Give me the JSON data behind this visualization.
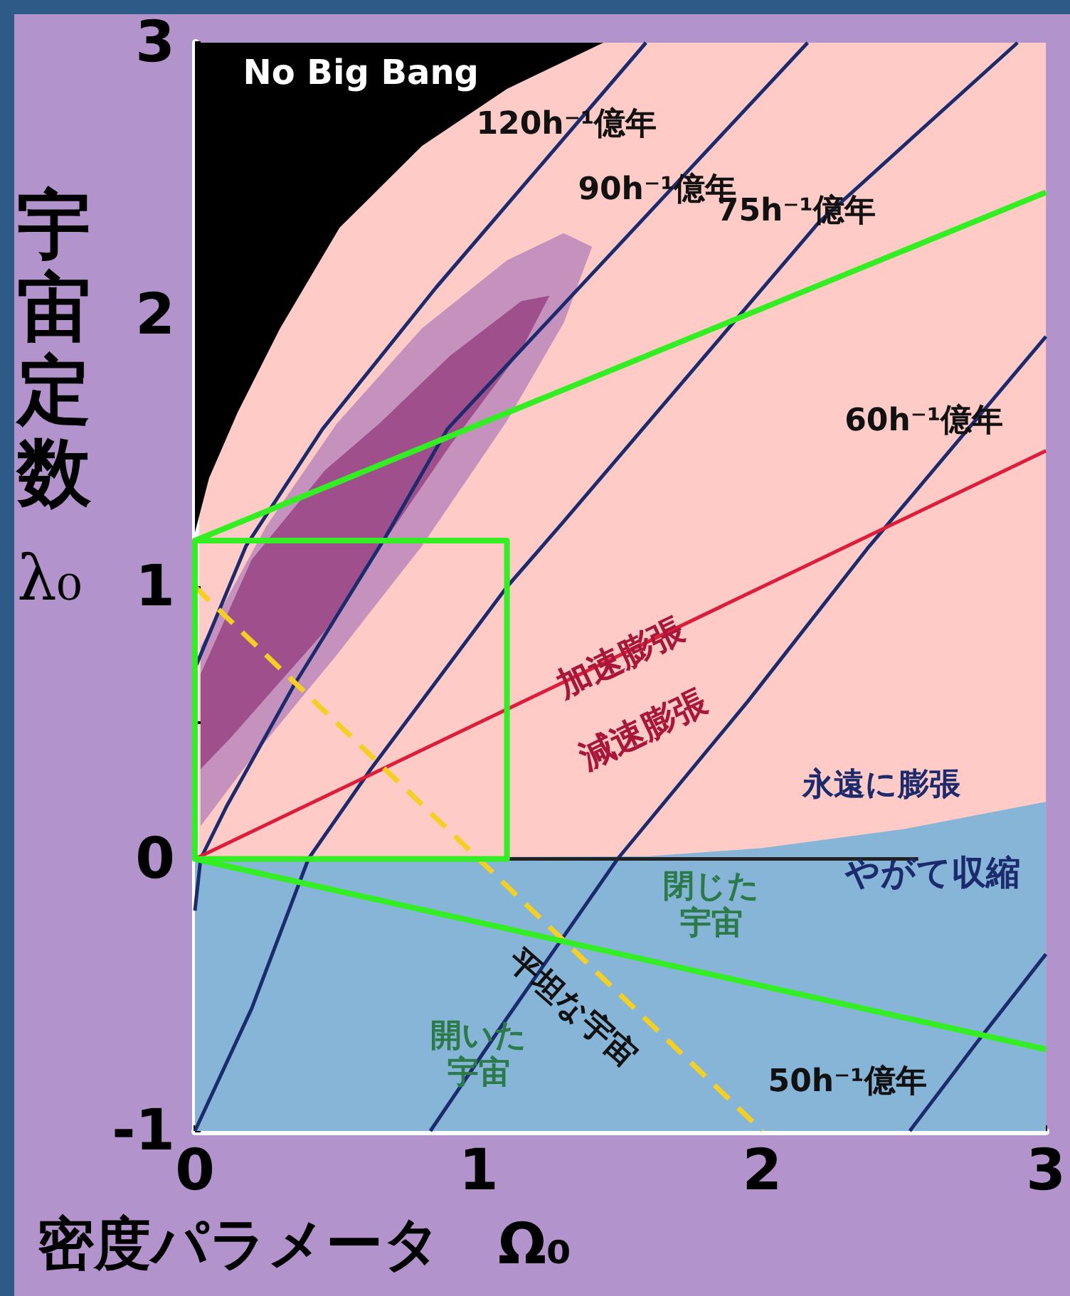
{
  "chart_data": {
    "type": "line",
    "xlabel": "密度パラメータ　Ω₀",
    "ylabel": "宇宙定数 λ₀",
    "xlim": [
      0,
      3
    ],
    "ylim": [
      -1,
      3
    ],
    "xticks": [
      0,
      1,
      2,
      3
    ],
    "yticks": [
      -1,
      {
        "value": -0.5,
        "label": null
      },
      0,
      {
        "value": 0.5,
        "label": null
      },
      1,
      {
        "value": 1.5,
        "label": null
      },
      2,
      {
        "value": 2.5,
        "label": null
      },
      3
    ],
    "grid": false,
    "marker": "none",
    "series": [
      {
        "type": "area",
        "color": "#000000",
        "x": [
          0,
          0.05,
          0.15,
          0.3,
          0.51,
          0.8,
          1.1,
          1.44,
          0
        ],
        "values": [
          1.2,
          1.4,
          1.64,
          1.95,
          2.32,
          2.62,
          2.83,
          3,
          3
        ]
      },
      {
        "type": "area",
        "color": "#87b5d8",
        "x": [
          0,
          1.6,
          2,
          2.5,
          3,
          3,
          0
        ],
        "values": [
          0,
          0.01,
          0.04,
          0.11,
          0.21,
          -1,
          -1
        ]
      },
      {
        "type": "area",
        "color": "#c592be",
        "x": [
          0.02,
          0.25,
          0.5,
          0.8,
          1.1,
          1.3,
          1.4,
          1.3,
          1.1,
          0.8,
          0.5,
          0.2,
          0.02
        ],
        "values": [
          0.78,
          1.22,
          1.6,
          1.95,
          2.2,
          2.3,
          2.25,
          1.97,
          1.61,
          1.15,
          0.75,
          0.37,
          0.12
        ]
      },
      {
        "type": "area",
        "color": "#9e4f8c",
        "x": [
          0.02,
          0.2,
          0.46,
          0.65,
          0.9,
          1.15,
          1.25,
          1.15,
          0.9,
          0.65,
          0.46,
          0.13,
          0.02
        ],
        "values": [
          0.68,
          1.1,
          1.43,
          1.6,
          1.85,
          2.05,
          2.07,
          1.87,
          1.52,
          1.14,
          0.84,
          0.45,
          0.33
        ]
      },
      {
        "type": "line",
        "color": "#1c2a6e",
        "x": [
          0,
          0.18,
          0.45,
          0.85,
          1.59
        ],
        "values": [
          0.7,
          1.15,
          1.58,
          2.1,
          3
        ]
      },
      {
        "type": "line",
        "color": "#1c2a6e",
        "x": [
          0,
          0.02,
          0.11,
          0.35,
          0.67,
          0.89,
          2.16
        ],
        "values": [
          -0.19,
          0,
          0.19,
          0.64,
          1.18,
          1.58,
          3
        ]
      },
      {
        "type": "line",
        "color": "#1c2a6e",
        "x": [
          0,
          0.2,
          0.4,
          0.62,
          1.1,
          1.3,
          2.2,
          2.9
        ],
        "values": [
          -1,
          -0.55,
          0,
          0.33,
          1.0,
          1.24,
          2.34,
          3
        ]
      },
      {
        "type": "line",
        "color": "#1c2a6e",
        "x": [
          0.83,
          1.09,
          1.49,
          1.95,
          2.37,
          3
        ],
        "values": [
          -1,
          -0.6,
          0,
          0.58,
          1.14,
          1.92
        ]
      },
      {
        "type": "line",
        "color": "#1c2a6e",
        "x": [
          2.52,
          2.76,
          3
        ],
        "values": [
          -1,
          -0.67,
          -0.35
        ]
      },
      {
        "type": "line",
        "color": "#222222",
        "x": [
          0,
          2.55
        ],
        "values": [
          0,
          0
        ]
      },
      {
        "type": "line",
        "color": "#dc1e3c",
        "x": [
          0,
          3
        ],
        "values": [
          0,
          1.5
        ]
      },
      {
        "type": "line",
        "color": "#f5d020",
        "line_style": "dashed",
        "x": [
          0,
          2
        ],
        "values": [
          1,
          -1
        ]
      },
      {
        "type": "line",
        "color": "#33ee22",
        "x": [
          3,
          0,
          1.1,
          1.1,
          0,
          0,
          0,
          3
        ],
        "values": [
          -0.7,
          0,
          0,
          1.17,
          1.17,
          0,
          1.17,
          2.45
        ]
      }
    ],
    "annotations": [
      "No Big Bang",
      "120h⁻¹億年",
      "90h⁻¹億年",
      "75h⁻¹億年",
      "60h⁻¹億年",
      "50h⁻¹億年",
      "加速膨張",
      "減速膨張",
      "永遠に膨張",
      "やがて収縮",
      "平坦な宇宙",
      "閉じた宇宙",
      "開いた宇宙"
    ]
  }
}
